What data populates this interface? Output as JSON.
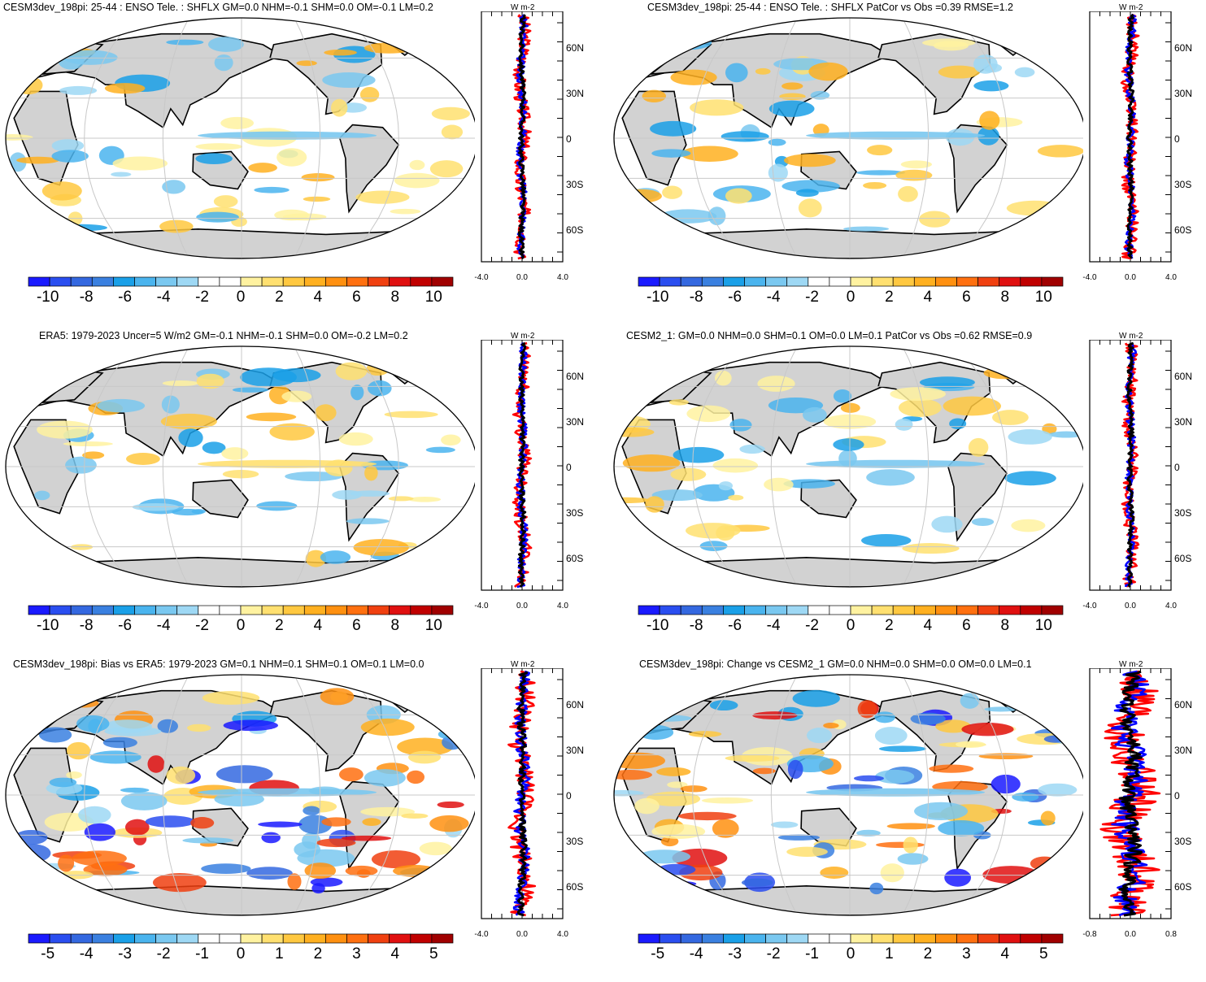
{
  "panels": [
    {
      "title": "CESM3dev_198pi: 25-44 : ENSO Tele. : SHFLX GM=0.0 NHM=-0.1 SHM=0.0 OM=-0.1 LM=0.2",
      "colorbar_labels": [
        "-10",
        "-8",
        "-6",
        "-4",
        "-2",
        "0",
        "2",
        "4",
        "6",
        "8",
        "10"
      ],
      "profile": {
        "unit": "W m-2",
        "x_ticks": [
          "-4.0",
          "0.0",
          "4.0"
        ],
        "lat_ticks": [
          "60N",
          "30N",
          "0",
          "30S",
          "60S"
        ]
      }
    },
    {
      "title": "CESM3dev_198pi: 25-44 : ENSO Tele. : SHFLX PatCor vs Obs =0.39 RMSE=1.2",
      "colorbar_labels": [
        "-10",
        "-8",
        "-6",
        "-4",
        "-2",
        "0",
        "2",
        "4",
        "6",
        "8",
        "10"
      ],
      "profile": {
        "unit": "W m-2",
        "x_ticks": [
          "-4.0",
          "0.0",
          "4.0"
        ],
        "lat_ticks": [
          "60N",
          "30N",
          "0",
          "30S",
          "60S"
        ]
      }
    },
    {
      "title": "ERA5: 1979-2023 Uncer=5 W/m2 GM=-0.1 NHM=-0.1 SHM=0.0 OM=-0.2 LM=0.2",
      "colorbar_labels": [
        "-10",
        "-8",
        "-6",
        "-4",
        "-2",
        "0",
        "2",
        "4",
        "6",
        "8",
        "10"
      ],
      "profile": {
        "unit": "W m-2",
        "x_ticks": [
          "-4.0",
          "0.0",
          "4.0"
        ],
        "lat_ticks": [
          "60N",
          "30N",
          "0",
          "30S",
          "60S"
        ]
      }
    },
    {
      "title": "CESM2_1: GM=0.0 NHM=0.0 SHM=0.1 OM=0.0 LM=0.1 PatCor vs Obs =0.62 RMSE=0.9",
      "colorbar_labels": [
        "-10",
        "-8",
        "-6",
        "-4",
        "-2",
        "0",
        "2",
        "4",
        "6",
        "8",
        "10"
      ],
      "profile": {
        "unit": "W m-2",
        "x_ticks": [
          "-4.0",
          "0.0",
          "4.0"
        ],
        "lat_ticks": [
          "60N",
          "30N",
          "0",
          "30S",
          "60S"
        ]
      }
    },
    {
      "title": "CESM3dev_198pi: Bias vs ERA5: 1979-2023 GM=0.1 NHM=0.1 SHM=0.1 OM=0.1 LM=0.0",
      "colorbar_labels": [
        "-5",
        "-4",
        "-3",
        "-2",
        "-1",
        "0",
        "1",
        "2",
        "3",
        "4",
        "5"
      ],
      "profile": {
        "unit": "W m-2",
        "x_ticks": [
          "-4.0",
          "0.0",
          "4.0"
        ],
        "lat_ticks": [
          "60N",
          "30N",
          "0",
          "30S",
          "60S"
        ]
      }
    },
    {
      "title": "CESM3dev_198pi: Change vs CESM2_1 GM=0.0 NHM=0.0 SHM=0.0 OM=0.0 LM=0.1",
      "colorbar_labels": [
        "-5",
        "-4",
        "-3",
        "-2",
        "-1",
        "0",
        "1",
        "2",
        "3",
        "4",
        "5"
      ],
      "profile": {
        "unit": "W m-2",
        "x_ticks": [
          "-0.8",
          "0.0",
          "0.8"
        ],
        "lat_ticks": [
          "60N",
          "30N",
          "0",
          "30S",
          "60S"
        ]
      }
    }
  ],
  "colors": {
    "palette": [
      "#1a1aff",
      "#2a4ef0",
      "#3468e0",
      "#3a80e0",
      "#1aa0e8",
      "#4ab4ee",
      "#7ac8f0",
      "#9ed8f4",
      "#ffffff",
      "#ffffff",
      "#fff2a0",
      "#ffe070",
      "#ffc840",
      "#ffb020",
      "#ff9010",
      "#ff7010",
      "#f04010",
      "#e01010",
      "#c00000",
      "#a00000"
    ],
    "land": "#d2d2d2",
    "coast": "#000000",
    "grid": "#c8c8c8",
    "profile_model": "#ff0000",
    "profile_ocean": "#0000ff",
    "profile_land": "#000000"
  }
}
